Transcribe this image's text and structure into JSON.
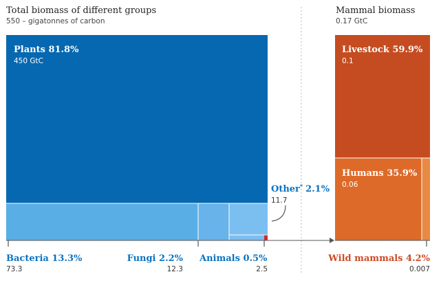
{
  "left_panel": {
    "title": "Total biomass of different groups",
    "subtitle": "550 – gigatonnes of carbon"
  },
  "right_panel": {
    "title": "Mammal biomass",
    "subtitle": "0.17 GtC"
  },
  "colors": {
    "plants": "#0668b0",
    "plants_sub": "#5aaee6",
    "sub_blue_mid": "#67b3ea",
    "sub_blue_light": "#7bbef0",
    "animals": "#d42a2a",
    "blue_text": "#0a73c2",
    "livestock": "#c54c20",
    "humans": "#dd6a29",
    "wild": "#e88a44",
    "wild_text": "#cc4b25",
    "axis": "#555555",
    "divider": "#bbbbbb"
  },
  "chart_data": [
    {
      "type": "treemap",
      "title": "Total biomass of different groups",
      "subtitle": "550 – gigatonnes of carbon",
      "unit": "GtC",
      "segments": [
        {
          "key": "plants",
          "label": "Plants 81.8%",
          "percent": 81.8,
          "value": 450,
          "value_label": "450 GtC"
        },
        {
          "key": "bacteria",
          "label": "Bacteria 13.3%",
          "percent": 13.3,
          "value": 73.3,
          "value_label": "73.3"
        },
        {
          "key": "fungi",
          "label": "Fungi 2.2%",
          "percent": 2.2,
          "value": 12.3,
          "value_label": "12.3"
        },
        {
          "key": "other",
          "label": "Other* 2.1%",
          "label_main": "Other",
          "label_mark": "*",
          "label_pct": "2.1%",
          "percent": 2.1,
          "value": 11.7,
          "value_label": "11.7"
        },
        {
          "key": "animals",
          "label": "Animals 0.5%",
          "percent": 0.5,
          "value": 2.5,
          "value_label": "2.5"
        }
      ]
    },
    {
      "type": "treemap",
      "title": "Mammal biomass",
      "subtitle": "0.17 GtC",
      "unit": "GtC",
      "segments": [
        {
          "key": "livestock",
          "label": "Livestock 59.9%",
          "percent": 59.9,
          "value": 0.1,
          "value_label": "0.1"
        },
        {
          "key": "humans",
          "label": "Humans 35.9%",
          "percent": 35.9,
          "value": 0.06,
          "value_label": "0.06"
        },
        {
          "key": "wild",
          "label": "Wild mammals 4.2%",
          "percent": 4.2,
          "value": 0.007,
          "value_label": "0.007"
        }
      ]
    }
  ]
}
